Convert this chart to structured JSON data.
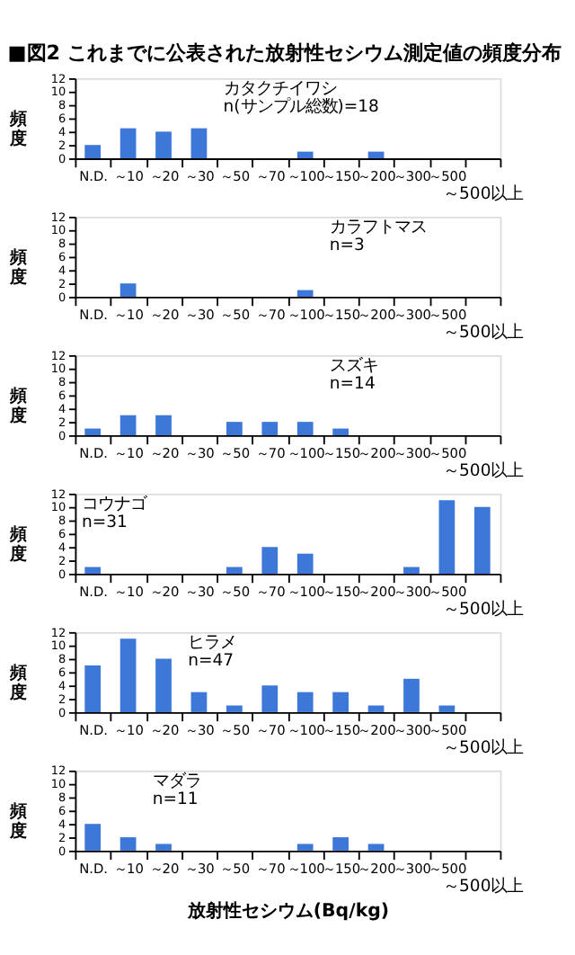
{
  "chart_data": [
    {
      "type": "bar",
      "title": "カタクチイワシ",
      "subtitle": "n(サンプル総数)=18",
      "annotations": [
        "■図2 これまでに公表された放射性セシウム測定値の頻度分布"
      ],
      "ylabel": "頻度",
      "categories": [
        "N.D.",
        "～10",
        "～20",
        "～30",
        "～50",
        "～70",
        "～100",
        "～150",
        "～200",
        "～300",
        "～500",
        "～500以上"
      ],
      "values": [
        2,
        4.5,
        4,
        4.5,
        0,
        0,
        1,
        0,
        1,
        0,
        0,
        0
      ],
      "color": "#3d78d8",
      "ylim": [
        0,
        12
      ],
      "yticks": [
        0,
        2,
        4,
        6,
        8,
        10,
        12
      ],
      "grid": false,
      "legend": false
    },
    {
      "type": "bar",
      "title": "カラフトマス",
      "subtitle": "n=3",
      "ylabel": "頻度",
      "categories": [
        "N.D.",
        "～10",
        "～20",
        "～30",
        "～50",
        "～70",
        "～100",
        "～150",
        "～200",
        "～300",
        "～500",
        "～500以上"
      ],
      "values": [
        0,
        2,
        0,
        0,
        0,
        0,
        1,
        0,
        0,
        0,
        0,
        0
      ],
      "color": "#3d78d8",
      "ylim": [
        0,
        12
      ],
      "yticks": [
        0,
        2,
        4,
        6,
        8,
        10,
        12
      ],
      "grid": false,
      "legend": false
    },
    {
      "type": "bar",
      "title": "スズキ",
      "subtitle": "n=14",
      "ylabel": "頻度",
      "categories": [
        "N.D.",
        "～10",
        "～20",
        "～30",
        "～50",
        "～70",
        "～100",
        "～150",
        "～200",
        "～300",
        "～500",
        "～500以上"
      ],
      "values": [
        1,
        3,
        3,
        0,
        2,
        2,
        2,
        1,
        0,
        0,
        0,
        0
      ],
      "color": "#3d78d8",
      "ylim": [
        0,
        12
      ],
      "yticks": [
        0,
        2,
        4,
        6,
        8,
        10,
        12
      ],
      "grid": false,
      "legend": false
    },
    {
      "type": "bar",
      "title": "コウナゴ",
      "subtitle": "n=31",
      "ylabel": "頻度",
      "categories": [
        "N.D.",
        "～10",
        "～20",
        "～30",
        "～50",
        "～70",
        "～100",
        "～150",
        "～200",
        "～300",
        "～500",
        "～500以上"
      ],
      "values": [
        1,
        0,
        0,
        0,
        1,
        4,
        3,
        0,
        0,
        1,
        11,
        10
      ],
      "color": "#3d78d8",
      "ylim": [
        0,
        12
      ],
      "yticks": [
        0,
        2,
        4,
        6,
        8,
        10,
        12
      ],
      "grid": false,
      "legend": false
    },
    {
      "type": "bar",
      "title": "ヒラメ",
      "subtitle": "n=47",
      "ylabel": "頻度",
      "categories": [
        "N.D.",
        "～10",
        "～20",
        "～30",
        "～50",
        "～70",
        "～100",
        "～150",
        "～200",
        "～300",
        "～500",
        "～500以上"
      ],
      "values": [
        7,
        11,
        8,
        3,
        1,
        4,
        3,
        3,
        1,
        5,
        1,
        0
      ],
      "color": "#3d78d8",
      "ylim": [
        0,
        12
      ],
      "yticks": [
        0,
        2,
        4,
        6,
        8,
        10,
        12
      ],
      "grid": false,
      "legend": false
    },
    {
      "type": "bar",
      "title": "マダラ",
      "subtitle": "n=11",
      "ylabel": "頻度",
      "xlabel": "放射性セシウム(Bq/kg)",
      "categories": [
        "N.D.",
        "～10",
        "～20",
        "～30",
        "～50",
        "～70",
        "～100",
        "～150",
        "～200",
        "～300",
        "～500",
        "～500以上"
      ],
      "values": [
        4,
        2,
        1,
        0,
        0,
        0,
        1,
        2,
        1,
        0,
        0,
        0
      ],
      "color": "#3d78d8",
      "ylim": [
        0,
        12
      ],
      "yticks": [
        0,
        2,
        4,
        6,
        8,
        10,
        12
      ],
      "grid": false,
      "legend": false
    }
  ]
}
